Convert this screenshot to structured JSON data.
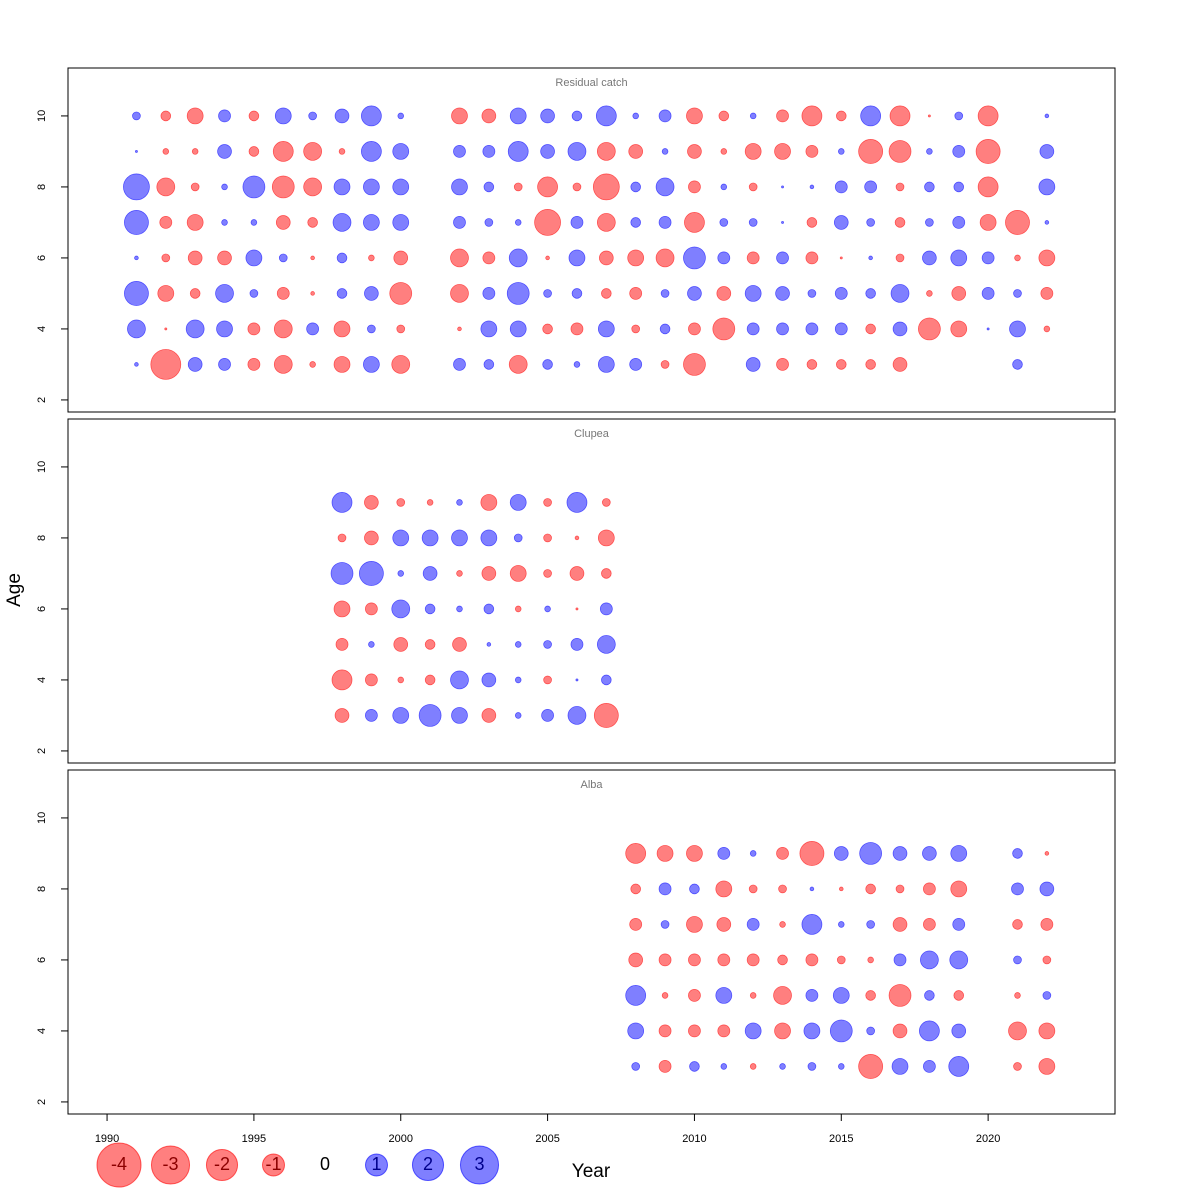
{
  "chart_data": [
    {
      "type": "bubble",
      "title": "Residual catch",
      "x": [
        1991,
        1992,
        1993,
        1994,
        1995,
        1996,
        1997,
        1998,
        1999,
        2000,
        2002,
        2003,
        2004,
        2005,
        2006,
        2007,
        2008,
        2009,
        2010,
        2011,
        2012,
        2013,
        2014,
        2015,
        2016,
        2017,
        2018,
        2019,
        2020,
        2021,
        2022
      ],
      "y": [
        3,
        4,
        5,
        6,
        7,
        8,
        9,
        10
      ],
      "values": [
        [
          0.03,
          -1.86,
          0.4,
          0.3,
          -0.3,
          -0.67,
          -0.07,
          -0.53,
          0.53,
          -0.67,
          0.3,
          0.2,
          -0.67,
          0.2,
          0.07,
          0.53,
          0.3,
          -0.13,
          -1.0,
          null,
          0.4,
          -0.3,
          -0.2,
          -0.2,
          -0.2,
          -0.4,
          null,
          null,
          null,
          0.2,
          null
        ],
        [
          0.67,
          -0.01,
          0.67,
          0.53,
          -0.3,
          -0.67,
          0.3,
          -0.53,
          0.13,
          -0.13,
          -0.03,
          0.53,
          0.53,
          -0.2,
          -0.3,
          0.53,
          -0.13,
          0.2,
          -0.3,
          -1.0,
          0.3,
          0.3,
          0.3,
          0.3,
          -0.2,
          0.4,
          -1.0,
          -0.53,
          0.01,
          0.53,
          -0.07
        ],
        [
          1.2,
          -0.53,
          -0.2,
          0.67,
          0.13,
          -0.3,
          -0.03,
          0.2,
          0.4,
          -1.0,
          -0.67,
          0.3,
          1.0,
          0.13,
          0.2,
          -0.2,
          -0.3,
          0.13,
          0.4,
          -0.4,
          0.53,
          0.4,
          0.13,
          0.3,
          0.2,
          0.67,
          -0.07,
          -0.4,
          0.3,
          0.13,
          -0.3
        ],
        [
          0.03,
          -0.13,
          -0.4,
          -0.4,
          0.53,
          0.13,
          -0.03,
          0.2,
          -0.07,
          -0.4,
          -0.67,
          -0.3,
          0.67,
          -0.03,
          0.53,
          -0.4,
          -0.53,
          -0.67,
          1.0,
          0.3,
          -0.3,
          0.3,
          -0.3,
          -0.01,
          0.03,
          -0.13,
          0.4,
          0.53,
          0.3,
          -0.07,
          -0.53
        ],
        [
          1.2,
          -0.3,
          -0.53,
          0.07,
          0.07,
          -0.4,
          -0.2,
          0.67,
          0.53,
          0.53,
          0.3,
          0.13,
          0.07,
          -1.4,
          0.3,
          -0.67,
          0.2,
          0.3,
          -0.83,
          0.13,
          0.13,
          0.01,
          -0.2,
          0.4,
          0.13,
          -0.2,
          0.13,
          0.3,
          -0.53,
          -1.2,
          0.03
        ],
        [
          1.4,
          -0.67,
          -0.13,
          0.07,
          1.0,
          -1.0,
          -0.67,
          0.53,
          0.53,
          0.53,
          0.53,
          0.2,
          -0.13,
          -0.83,
          -0.13,
          -1.4,
          0.2,
          0.67,
          -0.3,
          0.07,
          -0.13,
          0.01,
          0.03,
          0.3,
          0.3,
          -0.13,
          0.2,
          0.2,
          -0.83,
          null,
          0.53
        ],
        [
          0.01,
          -0.07,
          -0.07,
          0.4,
          -0.2,
          -0.83,
          -0.67,
          -0.07,
          0.83,
          0.53,
          0.3,
          0.3,
          0.83,
          0.4,
          0.67,
          -0.67,
          -0.4,
          0.07,
          -0.4,
          -0.07,
          -0.53,
          -0.53,
          -0.3,
          0.07,
          -1.2,
          -1.0,
          0.07,
          0.3,
          -1.2,
          null,
          0.4
        ],
        [
          0.13,
          -0.2,
          -0.53,
          0.3,
          -0.2,
          0.53,
          0.13,
          0.4,
          0.83,
          0.07,
          -0.53,
          -0.4,
          0.53,
          0.4,
          0.2,
          0.83,
          0.07,
          0.3,
          -0.53,
          -0.2,
          0.07,
          -0.3,
          -0.83,
          -0.2,
          0.83,
          -0.83,
          -0.01,
          0.13,
          -0.83,
          null,
          0.03
        ]
      ],
      "xlim": [
        1988.67,
        2024.32
      ],
      "ylim": [
        1.66,
        11.35
      ],
      "yticks": [
        2,
        4,
        6,
        8,
        10
      ],
      "positive_color": "#0000ff",
      "negative_color": "#ff0000"
    },
    {
      "type": "bubble",
      "title": "Clupea",
      "x": [
        1998,
        1999,
        2000,
        2001,
        2002,
        2003,
        2004,
        2005,
        2006,
        2007
      ],
      "y": [
        3,
        4,
        5,
        6,
        7,
        8,
        9
      ],
      "values": [
        [
          -0.4,
          0.3,
          0.53,
          1.0,
          0.53,
          -0.4,
          0.07,
          0.3,
          0.67,
          -1.2
        ],
        [
          -0.83,
          -0.3,
          -0.07,
          -0.2,
          0.67,
          0.4,
          0.07,
          -0.13,
          0.01,
          0.2
        ],
        [
          -0.3,
          0.07,
          -0.4,
          -0.2,
          -0.4,
          0.03,
          0.07,
          0.13,
          0.3,
          0.67
        ],
        [
          -0.53,
          -0.3,
          0.67,
          0.2,
          0.07,
          0.2,
          -0.07,
          0.07,
          -0.01,
          0.3
        ],
        [
          1.0,
          1.2,
          0.07,
          0.4,
          -0.07,
          -0.4,
          -0.53,
          -0.13,
          -0.4,
          -0.2
        ],
        [
          -0.13,
          -0.4,
          0.53,
          0.53,
          0.53,
          0.53,
          0.13,
          -0.13,
          -0.03,
          -0.53
        ],
        [
          0.83,
          -0.4,
          -0.13,
          -0.07,
          0.07,
          -0.53,
          0.53,
          -0.13,
          0.83,
          -0.13
        ]
      ],
      "xlim": [
        1988.67,
        2024.32
      ],
      "ylim": [
        1.66,
        11.35
      ],
      "yticks": [
        2,
        4,
        6,
        8,
        10
      ],
      "positive_color": "#0000ff",
      "negative_color": "#ff0000"
    },
    {
      "type": "bubble",
      "title": "Alba",
      "x": [
        2008,
        2009,
        2010,
        2011,
        2012,
        2013,
        2014,
        2015,
        2016,
        2017,
        2018,
        2019,
        2021,
        2022
      ],
      "y": [
        3,
        4,
        5,
        6,
        7,
        8,
        9
      ],
      "values": [
        [
          0.13,
          -0.3,
          0.2,
          0.07,
          -0.07,
          0.07,
          0.13,
          0.07,
          -1.2,
          0.53,
          0.3,
          0.83,
          -0.13,
          -0.53
        ],
        [
          0.53,
          -0.3,
          -0.3,
          -0.3,
          0.53,
          -0.53,
          0.53,
          1.0,
          0.13,
          -0.4,
          0.83,
          0.4,
          -0.67,
          -0.53
        ],
        [
          0.83,
          -0.07,
          -0.3,
          0.53,
          -0.07,
          -0.67,
          0.3,
          0.53,
          -0.2,
          -1.0,
          0.2,
          -0.2,
          -0.07,
          0.13
        ],
        [
          -0.4,
          -0.3,
          -0.3,
          -0.3,
          -0.3,
          -0.2,
          -0.3,
          -0.13,
          -0.07,
          0.3,
          0.67,
          0.67,
          0.13,
          -0.13
        ],
        [
          -0.3,
          0.13,
          -0.53,
          -0.4,
          0.3,
          -0.07,
          0.83,
          0.07,
          0.13,
          -0.4,
          -0.3,
          0.3,
          -0.2,
          -0.3
        ],
        [
          -0.2,
          0.3,
          0.2,
          -0.53,
          -0.13,
          -0.13,
          0.03,
          -0.03,
          -0.2,
          -0.13,
          -0.3,
          -0.53,
          0.3,
          0.4
        ],
        [
          -0.83,
          -0.53,
          -0.53,
          0.3,
          0.07,
          -0.3,
          -1.2,
          0.4,
          1.0,
          0.4,
          0.4,
          0.53,
          0.2,
          -0.03
        ]
      ],
      "xlim": [
        1988.67,
        2024.32
      ],
      "ylim": [
        1.66,
        11.35
      ],
      "yticks": [
        2,
        4,
        6,
        8,
        10
      ],
      "xticks": [
        1990,
        1995,
        2000,
        2005,
        2010,
        2015,
        2020
      ],
      "positive_color": "#0000ff",
      "negative_color": "#ff0000"
    }
  ],
  "xlabel": "Year",
  "ylabel": "Age",
  "legend": {
    "values": [
      -4,
      -3,
      -2,
      -1,
      0,
      1,
      2,
      3
    ]
  }
}
